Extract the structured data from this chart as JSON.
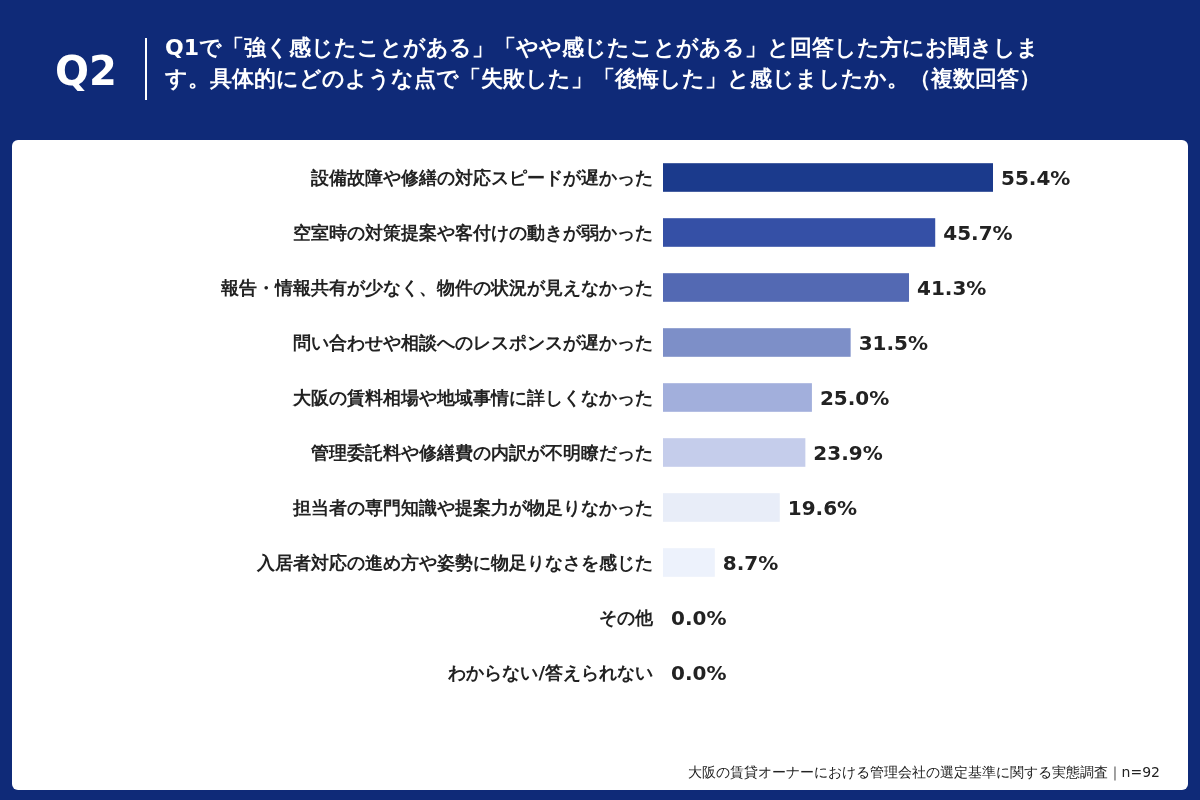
{
  "chart_data": {
    "type": "bar",
    "orientation": "horizontal",
    "title": "Q1で「強く感じたことがある」「やや感じたことがある」と回答した方にお聞きします。具体的にどのような点で「失敗した」「後悔した」と感じましたか。（複数回答）",
    "categories": [
      "設備故障や修繕の対応スピードが遅かった",
      "空室時の対策提案や客付けの動きが弱かった",
      "報告・情報共有が少なく、物件の状況が見えなかった",
      "問い合わせや相談へのレスポンスが遅かった",
      "大阪の賃料相場や地域事情に詳しくなかった",
      "管理委託料や修繕費の内訳が不明瞭だった",
      "担当者の専門知識や提案力が物足りなかった",
      "入居者対応の進め方や姿勢に物足りなさを感じた",
      "その他",
      "わからない/答えられない"
    ],
    "values": [
      55.4,
      45.7,
      41.3,
      31.5,
      25.0,
      23.9,
      19.6,
      8.7,
      0.0,
      0.0
    ],
    "value_labels": [
      "55.4%",
      "45.7%",
      "41.3%",
      "31.5%",
      "25.0%",
      "23.9%",
      "19.6%",
      "8.7%",
      "0.0%",
      "0.0%"
    ],
    "colors": [
      "#1b3a8c",
      "#3550a6",
      "#5369b3",
      "#7d8fc8",
      "#a2afdc",
      "#c5cdeb",
      "#e8edf8",
      "#edf2fc",
      "#f0f3fb",
      "#f0f3fb"
    ],
    "annotations": [
      "Q2",
      "大阪の賃貸オーナーにおける管理会社の選定基準に関する実態調査｜n=92"
    ]
  }
}
